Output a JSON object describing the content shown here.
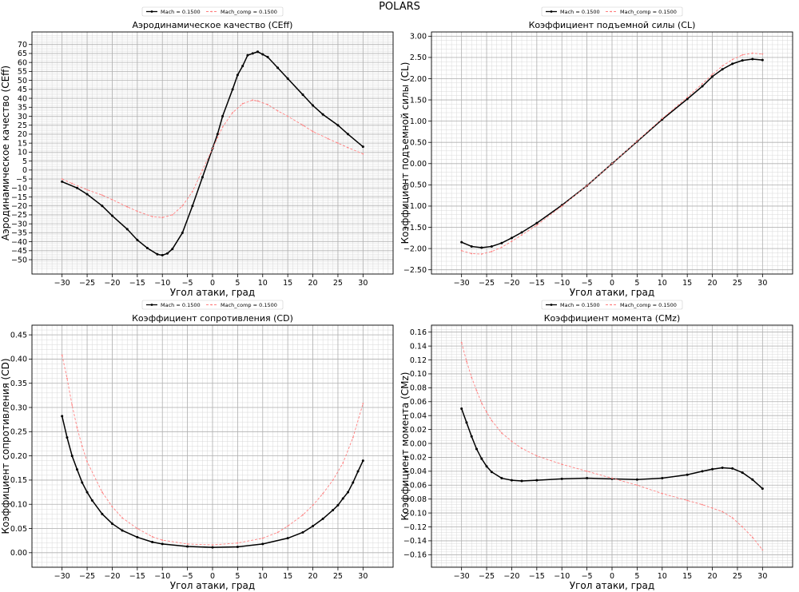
{
  "figure": {
    "title": "POLARS"
  },
  "legend": {
    "main": "Mach = 0.1500",
    "comp": "Mach_comp = 0.1500"
  },
  "colors": {
    "main": "#000000",
    "comp": "#ff8080"
  },
  "chart_data": [
    {
      "id": "ceff",
      "type": "line",
      "title": "Аэродинамическое качество (CEff)",
      "xlabel": "Угол атаки, град",
      "ylabel": "Аэродинамическое качество (CEff)",
      "xlim": [
        -36,
        36
      ],
      "ylim": [
        -58,
        77
      ],
      "xticks": [
        -30,
        -25,
        -20,
        -15,
        -10,
        -5,
        0,
        5,
        10,
        15,
        20,
        25,
        30
      ],
      "yticks": [
        -50,
        -45,
        -40,
        -35,
        -30,
        -25,
        -20,
        -15,
        -10,
        -5,
        0,
        5,
        10,
        15,
        20,
        25,
        30,
        35,
        40,
        45,
        50,
        55,
        60,
        65,
        70
      ],
      "grid": true,
      "legend_position": "above",
      "series": [
        {
          "name": "Mach = 0.1500",
          "style": "solid",
          "points": [
            [
              -30,
              -6.5
            ],
            [
              -27,
              -10
            ],
            [
              -25,
              -13.5
            ],
            [
              -22,
              -20
            ],
            [
              -20,
              -25.5
            ],
            [
              -17,
              -33
            ],
            [
              -15,
              -39
            ],
            [
              -13,
              -43.5
            ],
            [
              -11,
              -47
            ],
            [
              -10,
              -47.5
            ],
            [
              -9,
              -46.5
            ],
            [
              -8,
              -44
            ],
            [
              -6,
              -35
            ],
            [
              -4,
              -20
            ],
            [
              -2,
              -4
            ],
            [
              0,
              12
            ],
            [
              1,
              20
            ],
            [
              2,
              30
            ],
            [
              4,
              45
            ],
            [
              5,
              53
            ],
            [
              6,
              58
            ],
            [
              7,
              64
            ],
            [
              8,
              65
            ],
            [
              9,
              66
            ],
            [
              10,
              64.5
            ],
            [
              11,
              63
            ],
            [
              13,
              57
            ],
            [
              15,
              51
            ],
            [
              18,
              42
            ],
            [
              20,
              36
            ],
            [
              22,
              31
            ],
            [
              25,
              25
            ],
            [
              27,
              20
            ],
            [
              30,
              13
            ]
          ]
        },
        {
          "name": "Mach_comp = 0.1500",
          "style": "dashed",
          "points": [
            [
              -30,
              -5
            ],
            [
              -28,
              -7.5
            ],
            [
              -25,
              -11
            ],
            [
              -22,
              -14
            ],
            [
              -20,
              -16.5
            ],
            [
              -17,
              -20.5
            ],
            [
              -15,
              -23
            ],
            [
              -12,
              -26
            ],
            [
              -10,
              -26.5
            ],
            [
              -8,
              -25
            ],
            [
              -6,
              -20
            ],
            [
              -4,
              -12
            ],
            [
              -2,
              0
            ],
            [
              0,
              12
            ],
            [
              1,
              18
            ],
            [
              2,
              24
            ],
            [
              4,
              32
            ],
            [
              6,
              37
            ],
            [
              8,
              39
            ],
            [
              9,
              38.5
            ],
            [
              11,
              36.5
            ],
            [
              13,
              33
            ],
            [
              15,
              30
            ],
            [
              18,
              25
            ],
            [
              20,
              21.5
            ],
            [
              23,
              17.5
            ],
            [
              25,
              15
            ],
            [
              27,
              12.5
            ],
            [
              30,
              9
            ]
          ]
        }
      ]
    },
    {
      "id": "cl",
      "type": "line",
      "title": "Коэффициент подъемной силы (CL)",
      "xlabel": "Угол атаки, град",
      "ylabel": "Коэффициент подъемной силы (CL)",
      "xlim": [
        -36,
        36
      ],
      "ylim": [
        -2.6,
        3.1
      ],
      "xticks": [
        -30,
        -25,
        -20,
        -15,
        -10,
        -5,
        0,
        5,
        10,
        15,
        20,
        25,
        30
      ],
      "yticks": [
        -2.5,
        -2.0,
        -1.5,
        -1.0,
        -0.5,
        0.0,
        0.5,
        1.0,
        1.5,
        2.0,
        2.5,
        3.0
      ],
      "grid": true,
      "legend_position": "above",
      "series": [
        {
          "name": "Mach = 0.1500",
          "style": "solid",
          "points": [
            [
              -30,
              -1.85
            ],
            [
              -28,
              -1.95
            ],
            [
              -26,
              -1.98
            ],
            [
              -24,
              -1.95
            ],
            [
              -22,
              -1.87
            ],
            [
              -20,
              -1.75
            ],
            [
              -18,
              -1.62
            ],
            [
              -15,
              -1.4
            ],
            [
              -10,
              -0.98
            ],
            [
              -5,
              -0.52
            ],
            [
              0,
              0
            ],
            [
              5,
              0.52
            ],
            [
              10,
              1.04
            ],
            [
              15,
              1.52
            ],
            [
              18,
              1.82
            ],
            [
              20,
              2.05
            ],
            [
              22,
              2.22
            ],
            [
              24,
              2.35
            ],
            [
              26,
              2.43
            ],
            [
              28,
              2.46
            ],
            [
              30,
              2.44
            ]
          ]
        },
        {
          "name": "Mach_comp = 0.1500",
          "style": "dashed",
          "points": [
            [
              -30,
              -2.05
            ],
            [
              -28,
              -2.12
            ],
            [
              -26,
              -2.13
            ],
            [
              -24,
              -2.07
            ],
            [
              -22,
              -1.97
            ],
            [
              -20,
              -1.83
            ],
            [
              -18,
              -1.68
            ],
            [
              -15,
              -1.45
            ],
            [
              -10,
              -1.0
            ],
            [
              -5,
              -0.52
            ],
            [
              0,
              0
            ],
            [
              5,
              0.53
            ],
            [
              10,
              1.06
            ],
            [
              15,
              1.56
            ],
            [
              18,
              1.88
            ],
            [
              20,
              2.1
            ],
            [
              22,
              2.3
            ],
            [
              24,
              2.45
            ],
            [
              26,
              2.56
            ],
            [
              28,
              2.6
            ],
            [
              30,
              2.58
            ]
          ]
        }
      ]
    },
    {
      "id": "cd",
      "type": "line",
      "title": "Коэффициент сопротивления (CD)",
      "xlabel": "Угол атаки, град",
      "ylabel": "Коэффициент сопротивления (CD)",
      "xlim": [
        -36,
        36
      ],
      "ylim": [
        -0.03,
        0.47
      ],
      "xticks": [
        -30,
        -25,
        -20,
        -15,
        -10,
        -5,
        0,
        5,
        10,
        15,
        20,
        25,
        30
      ],
      "yticks": [
        0.0,
        0.05,
        0.1,
        0.15,
        0.2,
        0.25,
        0.3,
        0.35,
        0.4,
        0.45
      ],
      "grid": true,
      "legend_position": "above",
      "series": [
        {
          "name": "Mach = 0.1500",
          "style": "solid",
          "points": [
            [
              -30,
              0.282
            ],
            [
              -29,
              0.238
            ],
            [
              -28,
              0.2
            ],
            [
              -27,
              0.172
            ],
            [
              -26,
              0.145
            ],
            [
              -25,
              0.125
            ],
            [
              -24,
              0.108
            ],
            [
              -22,
              0.08
            ],
            [
              -20,
              0.06
            ],
            [
              -18,
              0.046
            ],
            [
              -15,
              0.032
            ],
            [
              -12,
              0.022
            ],
            [
              -10,
              0.018
            ],
            [
              -5,
              0.013
            ],
            [
              0,
              0.011
            ],
            [
              5,
              0.012
            ],
            [
              10,
              0.018
            ],
            [
              15,
              0.03
            ],
            [
              18,
              0.042
            ],
            [
              20,
              0.055
            ],
            [
              22,
              0.07
            ],
            [
              24,
              0.088
            ],
            [
              25,
              0.098
            ],
            [
              26,
              0.112
            ],
            [
              27,
              0.125
            ],
            [
              28,
              0.145
            ],
            [
              29,
              0.168
            ],
            [
              30,
              0.19
            ]
          ]
        },
        {
          "name": "Mach_comp = 0.1500",
          "style": "dashed",
          "points": [
            [
              -30,
              0.408
            ],
            [
              -29,
              0.36
            ],
            [
              -28,
              0.305
            ],
            [
              -27,
              0.258
            ],
            [
              -26,
              0.22
            ],
            [
              -25,
              0.188
            ],
            [
              -22,
              0.125
            ],
            [
              -20,
              0.095
            ],
            [
              -18,
              0.072
            ],
            [
              -15,
              0.05
            ],
            [
              -12,
              0.033
            ],
            [
              -10,
              0.026
            ],
            [
              -5,
              0.018
            ],
            [
              0,
              0.016
            ],
            [
              5,
              0.02
            ],
            [
              10,
              0.03
            ],
            [
              13,
              0.042
            ],
            [
              15,
              0.055
            ],
            [
              18,
              0.078
            ],
            [
              20,
              0.098
            ],
            [
              22,
              0.122
            ],
            [
              24,
              0.15
            ],
            [
              26,
              0.185
            ],
            [
              28,
              0.238
            ],
            [
              30,
              0.308
            ]
          ]
        }
      ]
    },
    {
      "id": "cmz",
      "type": "line",
      "title": "Коэффициент момента (CMz)",
      "xlabel": "Угол атаки, град",
      "ylabel": "Коэффициент момента (CMz)",
      "xlim": [
        -36,
        36
      ],
      "ylim": [
        -0.178,
        0.17
      ],
      "xticks": [
        -30,
        -25,
        -20,
        -15,
        -10,
        -5,
        0,
        5,
        10,
        15,
        20,
        25,
        30
      ],
      "yticks": [
        -0.16,
        -0.14,
        -0.12,
        -0.1,
        -0.08,
        -0.06,
        -0.04,
        -0.02,
        0.0,
        0.02,
        0.04,
        0.06,
        0.08,
        0.1,
        0.12,
        0.14,
        0.16
      ],
      "grid": true,
      "legend_position": "above",
      "series": [
        {
          "name": "Mach = 0.1500",
          "style": "solid",
          "points": [
            [
              -30,
              0.05
            ],
            [
              -29,
              0.03
            ],
            [
              -28,
              0.01
            ],
            [
              -27,
              -0.008
            ],
            [
              -26,
              -0.022
            ],
            [
              -25,
              -0.033
            ],
            [
              -24,
              -0.041
            ],
            [
              -22,
              -0.05
            ],
            [
              -20,
              -0.053
            ],
            [
              -18,
              -0.054
            ],
            [
              -15,
              -0.053
            ],
            [
              -10,
              -0.051
            ],
            [
              -5,
              -0.05
            ],
            [
              0,
              -0.051
            ],
            [
              5,
              -0.052
            ],
            [
              10,
              -0.05
            ],
            [
              15,
              -0.045
            ],
            [
              18,
              -0.04
            ],
            [
              20,
              -0.037
            ],
            [
              22,
              -0.035
            ],
            [
              24,
              -0.036
            ],
            [
              26,
              -0.042
            ],
            [
              28,
              -0.052
            ],
            [
              30,
              -0.065
            ]
          ]
        },
        {
          "name": "Mach_comp = 0.1500",
          "style": "dashed",
          "points": [
            [
              -30,
              0.145
            ],
            [
              -29,
              0.118
            ],
            [
              -28,
              0.095
            ],
            [
              -27,
              0.076
            ],
            [
              -26,
              0.058
            ],
            [
              -25,
              0.045
            ],
            [
              -24,
              0.033
            ],
            [
              -22,
              0.015
            ],
            [
              -20,
              0.003
            ],
            [
              -18,
              -0.007
            ],
            [
              -15,
              -0.018
            ],
            [
              -10,
              -0.03
            ],
            [
              -5,
              -0.04
            ],
            [
              0,
              -0.05
            ],
            [
              5,
              -0.06
            ],
            [
              10,
              -0.072
            ],
            [
              15,
              -0.082
            ],
            [
              18,
              -0.088
            ],
            [
              20,
              -0.093
            ],
            [
              22,
              -0.098
            ],
            [
              24,
              -0.107
            ],
            [
              26,
              -0.12
            ],
            [
              28,
              -0.135
            ],
            [
              30,
              -0.153
            ]
          ]
        }
      ]
    }
  ]
}
